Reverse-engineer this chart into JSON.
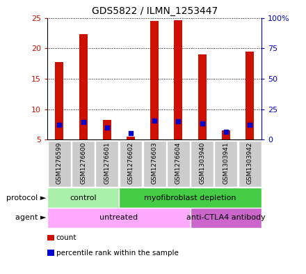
{
  "title": "GDS5822 / ILMN_1253447",
  "samples": [
    "GSM1276599",
    "GSM1276600",
    "GSM1276601",
    "GSM1276602",
    "GSM1276603",
    "GSM1276604",
    "GSM1303940",
    "GSM1303941",
    "GSM1303942"
  ],
  "counts": [
    17.8,
    22.3,
    8.3,
    5.5,
    24.5,
    24.6,
    19.0,
    6.5,
    19.5
  ],
  "percentile_ranks": [
    12.5,
    14.5,
    10.0,
    5.5,
    15.5,
    15.2,
    13.2,
    6.4,
    12.5
  ],
  "ylim_left": [
    5,
    25
  ],
  "ylim_right": [
    0,
    100
  ],
  "y_ticks_left": [
    5,
    10,
    15,
    20,
    25
  ],
  "y_ticks_right": [
    0,
    25,
    50,
    75,
    100
  ],
  "y_ticks_right_labels": [
    "0",
    "25",
    "50",
    "75",
    "100%"
  ],
  "bar_color": "#cc1100",
  "dot_color": "#0000cc",
  "bar_width": 0.35,
  "protocol_groups": [
    {
      "label": "control",
      "start": 0,
      "end": 3,
      "color": "#aaf0aa"
    },
    {
      "label": "myofibroblast depletion",
      "start": 3,
      "end": 9,
      "color": "#44cc44"
    }
  ],
  "agent_groups": [
    {
      "label": "untreated",
      "start": 0,
      "end": 6,
      "color": "#ffaaff"
    },
    {
      "label": "anti-CTLA4 antibody",
      "start": 6,
      "end": 9,
      "color": "#cc66cc"
    }
  ],
  "protocol_label": "protocol",
  "agent_label": "agent",
  "legend_count_label": "count",
  "legend_pct_label": "percentile rank within the sample",
  "left_axis_color": "#cc1100",
  "right_axis_color": "#0000cc",
  "background_color": "#ffffff",
  "plot_bg_color": "#ffffff",
  "sample_bg_color": "#cccccc"
}
